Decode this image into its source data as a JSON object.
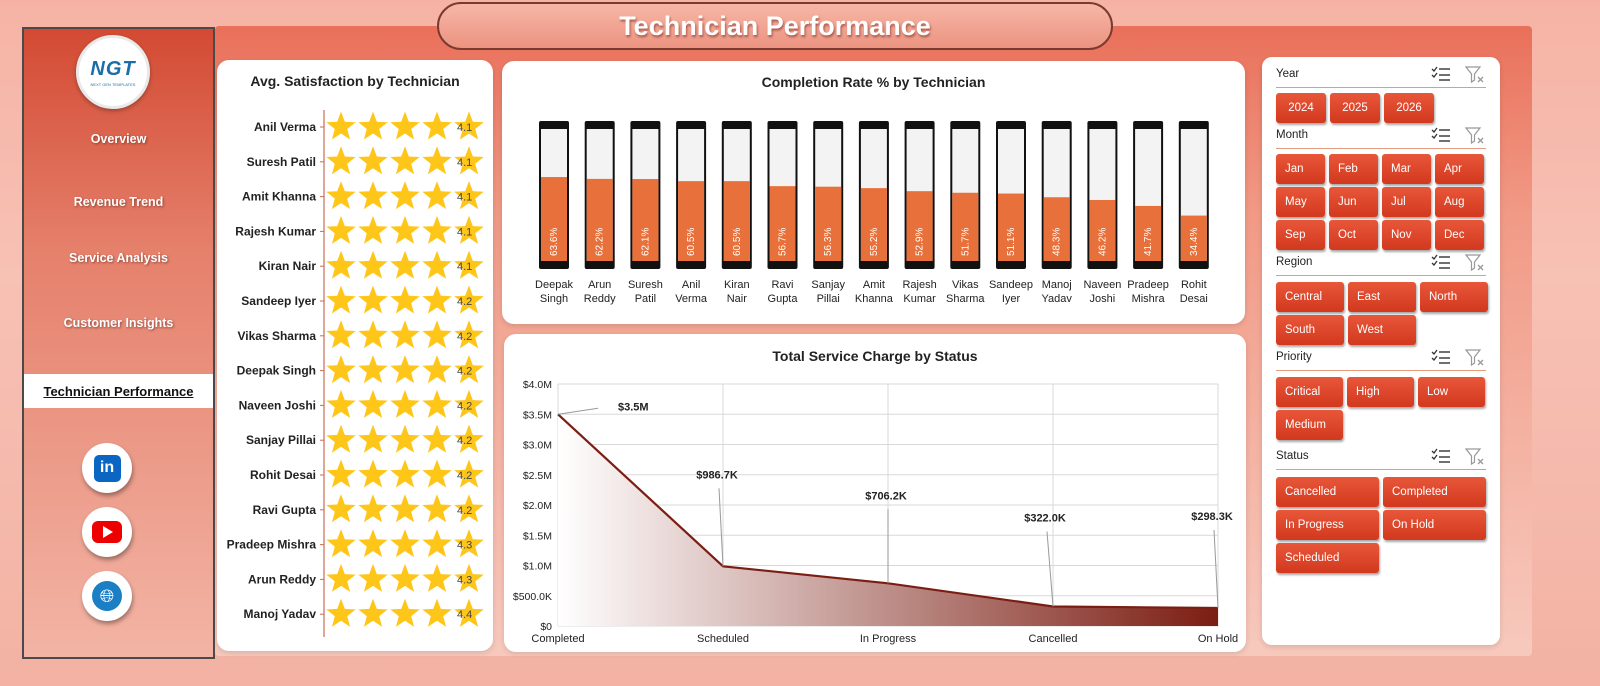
{
  "title": "Technician Performance",
  "logo": {
    "mark": "NGT",
    "tagline": "NEXT GEN TEMPLATES"
  },
  "nav": [
    "Overview",
    "Revenue Trend",
    "Service Analysis",
    "Customer Insights",
    "Technician Performance"
  ],
  "social": [
    "linkedin-icon",
    "youtube-icon",
    "globe-icon"
  ],
  "satisfaction": {
    "title": "Avg. Satisfaction by Technician",
    "rows": [
      {
        "name": "Anil Verma",
        "value": "4.1",
        "rating": 4.1
      },
      {
        "name": "Suresh Patil",
        "value": "4.1",
        "rating": 4.1
      },
      {
        "name": "Amit Khanna",
        "value": "4.1",
        "rating": 4.1
      },
      {
        "name": "Rajesh Kumar",
        "value": "4.1",
        "rating": 4.1
      },
      {
        "name": "Kiran Nair",
        "value": "4.1",
        "rating": 4.1
      },
      {
        "name": "Sandeep Iyer",
        "value": "4.2",
        "rating": 4.2
      },
      {
        "name": "Vikas Sharma",
        "value": "4.2",
        "rating": 4.2
      },
      {
        "name": "Deepak Singh",
        "value": "4.2",
        "rating": 4.2
      },
      {
        "name": "Naveen Joshi",
        "value": "4.2",
        "rating": 4.2
      },
      {
        "name": "Sanjay Pillai",
        "value": "4.2",
        "rating": 4.2
      },
      {
        "name": "Rohit Desai",
        "value": "4.2",
        "rating": 4.2
      },
      {
        "name": "Ravi Gupta",
        "value": "4.2",
        "rating": 4.2
      },
      {
        "name": "Pradeep Mishra",
        "value": "4.3",
        "rating": 4.3
      },
      {
        "name": "Arun Reddy",
        "value": "4.3",
        "rating": 4.3
      },
      {
        "name": "Manoj Yadav",
        "value": "4.4",
        "rating": 4.4
      }
    ]
  },
  "completion": {
    "title": "Completion Rate % by Technician",
    "bars": [
      {
        "name": [
          "Deepak",
          "Singh"
        ],
        "label": "63.6%",
        "value": 63.6
      },
      {
        "name": [
          "Arun",
          "Reddy"
        ],
        "label": "62.2%",
        "value": 62.2
      },
      {
        "name": [
          "Suresh",
          "Patil"
        ],
        "label": "62.1%",
        "value": 62.1
      },
      {
        "name": [
          "Anil",
          "Verma"
        ],
        "label": "60.5%",
        "value": 60.5
      },
      {
        "name": [
          "Kiran",
          "Nair"
        ],
        "label": "60.5%",
        "value": 60.5
      },
      {
        "name": [
          "Ravi",
          "Gupta"
        ],
        "label": "56.7%",
        "value": 56.7
      },
      {
        "name": [
          "Sanjay",
          "Pillai"
        ],
        "label": "56.3%",
        "value": 56.3
      },
      {
        "name": [
          "Amit",
          "Khanna"
        ],
        "label": "55.2%",
        "value": 55.2
      },
      {
        "name": [
          "Rajesh",
          "Kumar"
        ],
        "label": "52.9%",
        "value": 52.9
      },
      {
        "name": [
          "Vikas",
          "Sharma"
        ],
        "label": "51.7%",
        "value": 51.7
      },
      {
        "name": [
          "Sandeep",
          "Iyer"
        ],
        "label": "51.1%",
        "value": 51.1
      },
      {
        "name": [
          "Manoj",
          "Yadav"
        ],
        "label": "48.3%",
        "value": 48.3
      },
      {
        "name": [
          "Naveen",
          "Joshi"
        ],
        "label": "46.2%",
        "value": 46.2
      },
      {
        "name": [
          "Pradeep",
          "Mishra"
        ],
        "label": "41.7%",
        "value": 41.7
      },
      {
        "name": [
          "Rohit",
          "Desai"
        ],
        "label": "34.4%",
        "value": 34.4
      }
    ]
  },
  "chart_data": {
    "type": "area",
    "title": "Total Service Charge by Status",
    "categories": [
      "Completed",
      "Scheduled",
      "In Progress",
      "Cancelled",
      "On Hold"
    ],
    "values": [
      3500000,
      986700,
      706200,
      322000,
      298300
    ],
    "data_labels": [
      "$3.5M",
      "$986.7K",
      "$706.2K",
      "$322.0K",
      "$298.3K"
    ],
    "yticks": [
      "$0",
      "$500.0K",
      "$1.0M",
      "$1.5M",
      "$2.0M",
      "$2.5M",
      "$3.0M",
      "$3.5M",
      "$4.0M"
    ],
    "ylim": [
      0,
      4000000
    ],
    "grid": true,
    "colors": {
      "line": "#7b1d12",
      "fill_end": "#7b1d12"
    }
  },
  "slicers": {
    "year": {
      "label": "Year",
      "items": [
        "2024",
        "2025",
        "2026"
      ]
    },
    "month": {
      "label": "Month",
      "items": [
        "Jan",
        "Feb",
        "Mar",
        "Apr",
        "May",
        "Jun",
        "Jul",
        "Aug",
        "Sep",
        "Oct",
        "Nov",
        "Dec"
      ]
    },
    "region": {
      "label": "Region",
      "items": [
        "Central",
        "East",
        "North",
        "South",
        "West"
      ]
    },
    "priority": {
      "label": "Priority",
      "items": [
        "Critical",
        "High",
        "Low",
        "Medium"
      ]
    },
    "status": {
      "label": "Status",
      "items": [
        "Cancelled",
        "Completed",
        "In Progress",
        "On Hold",
        "Scheduled"
      ]
    }
  },
  "colors": {
    "accent": "#e8573a",
    "bar": "#e8703a",
    "star": "#ffc61a"
  }
}
